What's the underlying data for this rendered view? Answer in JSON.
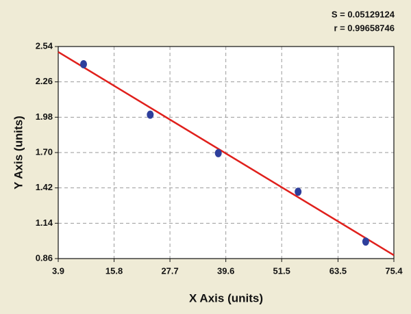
{
  "chart_data": {
    "type": "scatter",
    "annotations": [
      "S = 0.05129124",
      "r = 0.99658746"
    ],
    "x_label": "X Axis (units)",
    "y_label": "Y Axis (units)",
    "points": {
      "x": [
        9.3,
        23.5,
        38.0,
        55.0,
        69.4
      ],
      "y": [
        2.4,
        2.0,
        1.695,
        1.39,
        0.995
      ],
      "color": "#2e3f9c"
    },
    "fit_line": {
      "x": [
        3.9,
        75.4
      ],
      "y": [
        2.497,
        0.887
      ],
      "color": "#e0201c"
    },
    "xlim": [
      3.9,
      75.4
    ],
    "xticks": [
      3.9,
      15.8,
      27.7,
      39.6,
      51.5,
      63.5,
      75.4
    ],
    "ylim": [
      0.86,
      2.54
    ],
    "yticks": [
      0.86,
      1.14,
      1.42,
      {
        "value": 1.7,
        "label": "1.70"
      },
      1.98,
      2.26,
      2.54
    ],
    "grid": true
  }
}
